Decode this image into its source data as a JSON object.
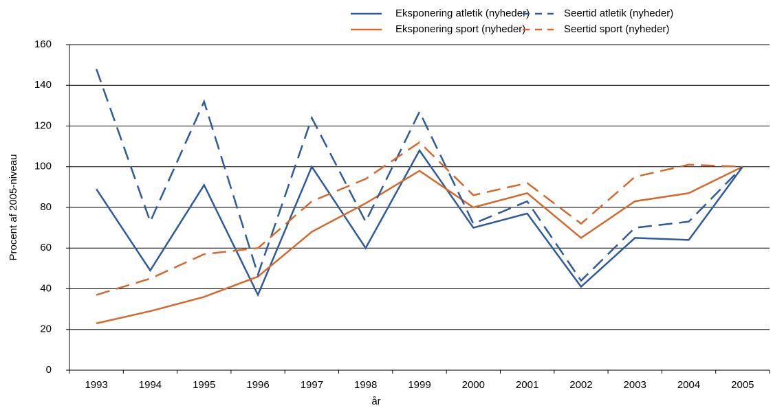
{
  "chart_data": {
    "type": "line",
    "x_label": "år",
    "y_label": "Procent af 2005-niveau",
    "categories": [
      "1993",
      "1994",
      "1995",
      "1996",
      "1997",
      "1998",
      "1999",
      "2000",
      "2001",
      "2002",
      "2003",
      "2004",
      "2005"
    ],
    "series": [
      {
        "name": "Eksponering atletik (nyheder)",
        "color": "#2e5a9c",
        "dashed": false,
        "values": [
          89,
          49,
          91,
          37,
          100,
          60,
          108,
          70,
          77,
          41,
          65,
          64,
          100
        ]
      },
      {
        "name": "Eksponering sport (nyheder)",
        "color": "#d2692f",
        "dashed": false,
        "values": [
          23,
          29,
          36,
          46,
          68,
          82,
          98,
          80,
          87,
          65,
          83,
          87,
          100
        ]
      },
      {
        "name": "Seertid atletik (nyheder)",
        "color": "#2e5a9c",
        "dashed": true,
        "values": [
          148,
          73,
          132,
          47,
          124,
          73,
          127,
          72,
          83,
          44,
          70,
          73,
          100
        ]
      },
      {
        "name": "Seertid sport (nyheder)",
        "color": "#d2692f",
        "dashed": true,
        "values": [
          37,
          45,
          57,
          60,
          83,
          94,
          112,
          86,
          92,
          72,
          95,
          101,
          100
        ]
      }
    ],
    "ylim": [
      0,
      160
    ],
    "yticks": [
      0,
      20,
      40,
      60,
      80,
      100,
      120,
      140,
      160
    ],
    "grid": true,
    "legend": "top"
  }
}
